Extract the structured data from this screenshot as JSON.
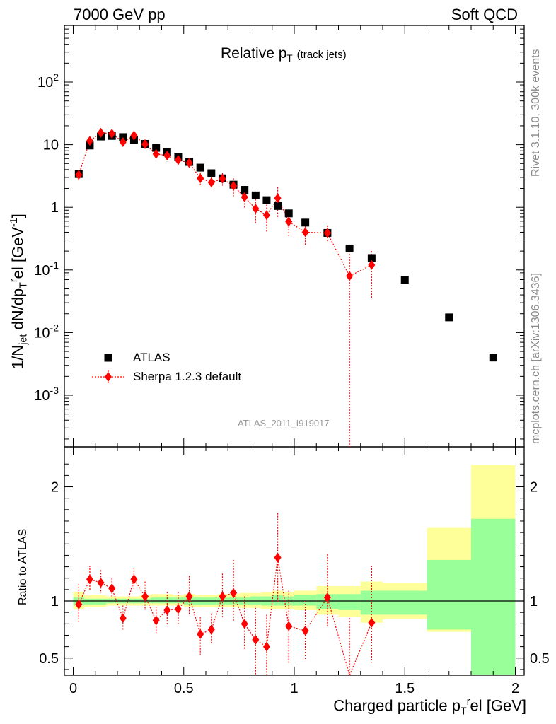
{
  "header": {
    "left": "7000 GeV pp",
    "right": "Soft QCD"
  },
  "side_labels": {
    "rivet": "Rivet 3.1.10,  300k events",
    "mcplots": "mcplots.cern.ch [arXiv:1306.3436]"
  },
  "analysis_id": "ATLAS_2011_I919017",
  "colors": {
    "data": "#000000",
    "mc": "#ff0000",
    "band_inner": "#99ff99",
    "band_outer": "#ffff99",
    "watermark": "#8a8a8a"
  },
  "chart_data": [
    {
      "type": "scatter",
      "title": "Relative pT (track jets)",
      "title_main": "Relative p",
      "title_sub": "T",
      "title_note": "(track jets)",
      "ylabel": "1/Njet dN/dprTel [GeV-1]",
      "ylabel_parts": {
        "a": "1/N",
        "a_sub": "jet",
        "b": " dN/dp",
        "b_sup": "r",
        "b_sub": "T",
        "c": "el [GeV",
        "c_sup": "-1",
        "d": "]"
      },
      "yscale": "log",
      "ylim": [
        0.00015,
        800
      ],
      "xlim": [
        -0.04,
        2.04
      ],
      "y_tick_labels": [
        "10^2",
        "10",
        "1",
        "10^-1",
        "10^-2",
        "10^-3"
      ],
      "legend_position": "lower-left",
      "series": [
        {
          "name": "ATLAS",
          "marker": "square",
          "x": [
            0.025,
            0.075,
            0.125,
            0.175,
            0.225,
            0.275,
            0.325,
            0.375,
            0.425,
            0.475,
            0.525,
            0.575,
            0.625,
            0.675,
            0.725,
            0.775,
            0.825,
            0.875,
            0.925,
            0.975,
            1.05,
            1.15,
            1.25,
            1.35,
            1.5,
            1.7,
            1.9
          ],
          "y": [
            3.4,
            9.7,
            13.5,
            13.8,
            13.2,
            12.0,
            10.3,
            8.9,
            7.6,
            6.3,
            5.3,
            4.3,
            3.5,
            2.9,
            2.3,
            1.9,
            1.55,
            1.3,
            1.05,
            0.8,
            0.57,
            0.39,
            0.22,
            0.155,
            0.07,
            0.0175,
            0.004
          ]
        },
        {
          "name": "Sherpa 1.2.3 default",
          "marker": "diamond",
          "line": "dotted",
          "x": [
            0.025,
            0.075,
            0.125,
            0.175,
            0.225,
            0.275,
            0.325,
            0.375,
            0.425,
            0.475,
            0.525,
            0.575,
            0.625,
            0.675,
            0.725,
            0.775,
            0.825,
            0.875,
            0.925,
            0.975,
            1.05,
            1.15,
            1.25,
            1.35
          ],
          "y": [
            3.3,
            11.5,
            15.5,
            15.0,
            11.0,
            14.0,
            10.2,
            7.1,
            6.7,
            5.7,
            5.1,
            2.9,
            2.5,
            2.85,
            2.2,
            1.45,
            0.95,
            0.75,
            1.4,
            0.59,
            0.4,
            0.39,
            0.08,
            0.12
          ],
          "err_up": [
            0.6,
            1.8,
            1.6,
            1.3,
            1.6,
            1.3,
            1.5,
            1.1,
            1.4,
            1.0,
            1.0,
            0.7,
            0.5,
            0.7,
            0.7,
            0.5,
            0.4,
            0.35,
            0.7,
            0.25,
            0.15,
            0.12,
            0.12,
            0.08
          ],
          "err_down": [
            0.6,
            1.8,
            1.6,
            1.3,
            1.6,
            1.3,
            1.5,
            1.1,
            1.4,
            1.0,
            1.0,
            0.7,
            0.5,
            0.7,
            0.7,
            0.5,
            0.4,
            0.35,
            0.7,
            0.25,
            0.15,
            0.12,
            0.0799,
            0.085
          ]
        }
      ]
    },
    {
      "type": "scatter",
      "ylabel": "Ratio to ATLAS",
      "xlabel": "Charged particle prTel [GeV]",
      "xlabel_parts": {
        "a": "Charged particle p",
        "a_sup": "r",
        "a_sub": "T",
        "b": "el [GeV]"
      },
      "xlim": [
        -0.04,
        2.04
      ],
      "ylim": [
        0.35,
        2.35
      ],
      "x_ticks": [
        0,
        0.5,
        1,
        1.5,
        2
      ],
      "x_tick_labels": [
        "0",
        "0.5",
        "1",
        "1.5",
        "2"
      ],
      "y_ticks": [
        0.5,
        1,
        2
      ],
      "y_tick_labels": [
        "0.5",
        "1",
        "2"
      ],
      "bands": {
        "edges": [
          0.0,
          0.05,
          0.1,
          0.15,
          0.2,
          0.25,
          0.3,
          0.35,
          0.4,
          0.45,
          0.5,
          0.55,
          0.6,
          0.65,
          0.7,
          0.75,
          0.8,
          0.85,
          0.9,
          0.95,
          1.0,
          1.1,
          1.2,
          1.3,
          1.4,
          1.6,
          1.8,
          2.0
        ],
        "outer_low": [
          0.93,
          0.95,
          0.95,
          0.96,
          0.96,
          0.96,
          0.96,
          0.96,
          0.96,
          0.96,
          0.95,
          0.95,
          0.95,
          0.95,
          0.95,
          0.94,
          0.94,
          0.93,
          0.93,
          0.93,
          0.92,
          0.88,
          0.86,
          0.81,
          0.84,
          0.73,
          0.29
        ],
        "outer_high": [
          1.08,
          1.05,
          1.05,
          1.04,
          1.04,
          1.04,
          1.05,
          1.06,
          1.06,
          1.05,
          1.06,
          1.05,
          1.05,
          1.06,
          1.06,
          1.07,
          1.07,
          1.08,
          1.09,
          1.08,
          1.09,
          1.13,
          1.13,
          1.17,
          1.16,
          1.64,
          2.19
        ],
        "inner_low": [
          0.96,
          0.97,
          0.97,
          0.98,
          0.98,
          0.98,
          0.98,
          0.98,
          0.98,
          0.98,
          0.97,
          0.97,
          0.97,
          0.97,
          0.97,
          0.97,
          0.97,
          0.96,
          0.96,
          0.96,
          0.96,
          0.93,
          0.92,
          0.88,
          0.88,
          0.75,
          0.29
        ],
        "inner_high": [
          1.03,
          1.02,
          1.02,
          1.02,
          1.02,
          1.02,
          1.02,
          1.03,
          1.03,
          1.03,
          1.03,
          1.03,
          1.03,
          1.03,
          1.03,
          1.03,
          1.04,
          1.04,
          1.05,
          1.04,
          1.05,
          1.06,
          1.06,
          1.09,
          1.09,
          1.36,
          1.72
        ]
      },
      "series": [
        {
          "name": "Sherpa 1.2.3 default",
          "marker": "diamond",
          "line": "dotted",
          "x": [
            0.025,
            0.075,
            0.125,
            0.175,
            0.225,
            0.275,
            0.325,
            0.375,
            0.425,
            0.475,
            0.525,
            0.575,
            0.625,
            0.675,
            0.725,
            0.775,
            0.825,
            0.875,
            0.925,
            0.975,
            1.05,
            1.15,
            1.25,
            1.35
          ],
          "y": [
            0.97,
            1.19,
            1.16,
            1.11,
            0.85,
            1.19,
            1.04,
            0.83,
            0.92,
            0.93,
            1.04,
            0.71,
            0.75,
            1.04,
            1.07,
            0.8,
            0.66,
            0.6,
            1.38,
            0.78,
            0.74,
            1.03,
            0.35,
            0.81
          ],
          "err_up": [
            0.18,
            0.12,
            0.11,
            0.09,
            0.11,
            0.1,
            0.13,
            0.12,
            0.16,
            0.15,
            0.18,
            0.15,
            0.14,
            0.2,
            0.29,
            0.24,
            0.28,
            0.28,
            0.39,
            0.31,
            0.26,
            0.38,
            0.5,
            0.5
          ],
          "err_down": [
            0.16,
            0.1,
            0.09,
            0.08,
            0.1,
            0.09,
            0.12,
            0.11,
            0.14,
            0.13,
            0.16,
            0.18,
            0.13,
            0.18,
            0.25,
            0.22,
            0.34,
            0.3,
            0.4,
            0.33,
            0.25,
            0.25,
            0.0,
            0.35
          ]
        }
      ]
    }
  ]
}
